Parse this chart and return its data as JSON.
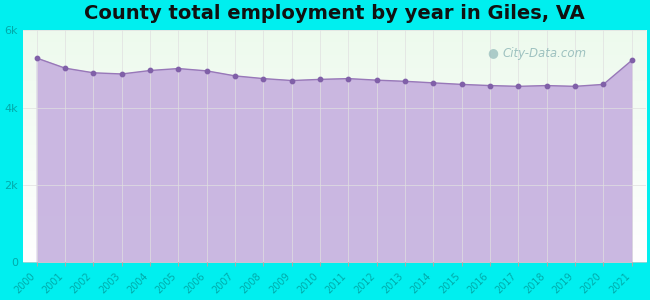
{
  "title": "County total employment by year in Giles, VA",
  "title_fontsize": 14,
  "title_fontweight": "bold",
  "background_color": "#00EFEF",
  "fill_color": "#c8b4e0",
  "fill_alpha": 0.95,
  "line_color": "#9878b8",
  "marker_color": "#8060a8",
  "marker_size": 10,
  "years": [
    2000,
    2001,
    2002,
    2003,
    2004,
    2005,
    2006,
    2007,
    2008,
    2009,
    2010,
    2011,
    2012,
    2013,
    2014,
    2015,
    2016,
    2017,
    2018,
    2019,
    2020,
    2021
  ],
  "values": [
    5280,
    5020,
    4900,
    4870,
    4960,
    5010,
    4950,
    4820,
    4750,
    4700,
    4730,
    4750,
    4710,
    4680,
    4640,
    4600,
    4570,
    4550,
    4570,
    4550,
    4600,
    5220
  ],
  "ylim": [
    0,
    6000
  ],
  "yticks": [
    0,
    2000,
    4000,
    6000
  ],
  "ytick_labels": [
    "0",
    "2k",
    "4k",
    "6k"
  ],
  "watermark": "City-Data.com",
  "plot_bg": "#ffffff",
  "tick_color": "#00b8b8",
  "label_color": "#00aaaa"
}
